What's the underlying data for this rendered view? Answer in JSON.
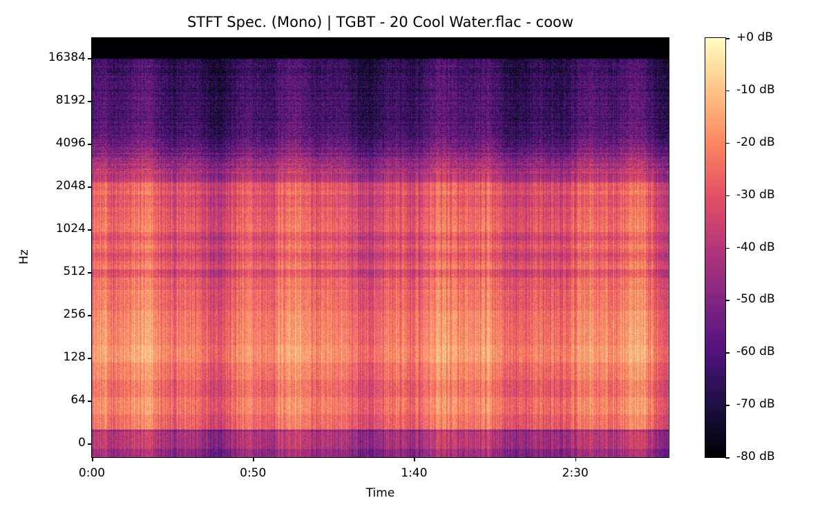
{
  "chart_data": {
    "type": "heatmap",
    "title": "STFT Spec. (Mono) | TGBT - 20 Cool Water.flac - coow",
    "xlabel": "Time",
    "ylabel": "Hz",
    "x_ticks": [
      {
        "label": "0:00",
        "seconds": 0
      },
      {
        "label": "0:50",
        "seconds": 50
      },
      {
        "label": "1:40",
        "seconds": 100
      },
      {
        "label": "2:30",
        "seconds": 150
      }
    ],
    "xlim_seconds": [
      0,
      179
    ],
    "y_scale": "log2 (symmetric, includes 0)",
    "y_ticks": [
      "0",
      "64",
      "128",
      "256",
      "512",
      "1024",
      "2048",
      "4096",
      "8192",
      "16384"
    ],
    "ylim_hz": [
      0,
      22050
    ],
    "colormap": "magma",
    "colorbar": {
      "ticks": [
        "+0 dB",
        "-10 dB",
        "-20 dB",
        "-30 dB",
        "-40 dB",
        "-50 dB",
        "-60 dB",
        "-70 dB",
        "-80 dB"
      ],
      "range_db": [
        -80,
        0
      ]
    },
    "band_levels_db_approx": [
      {
        "range": "0 Hz bin",
        "db": -45
      },
      {
        "range": "64-256 Hz",
        "db": -22
      },
      {
        "range": "256-2048 Hz",
        "db": -30
      },
      {
        "range": "2048-4096 Hz",
        "db": -45
      },
      {
        "range": "4096-16384 Hz",
        "db": -65
      },
      {
        "range": "above ~16 kHz",
        "db": -80
      }
    ]
  },
  "colors": {
    "magma": [
      "#000004",
      "#1c1044",
      "#4f127b",
      "#812581",
      "#b5367a",
      "#e55064",
      "#fb8761",
      "#fec287",
      "#fcfdbf"
    ]
  }
}
